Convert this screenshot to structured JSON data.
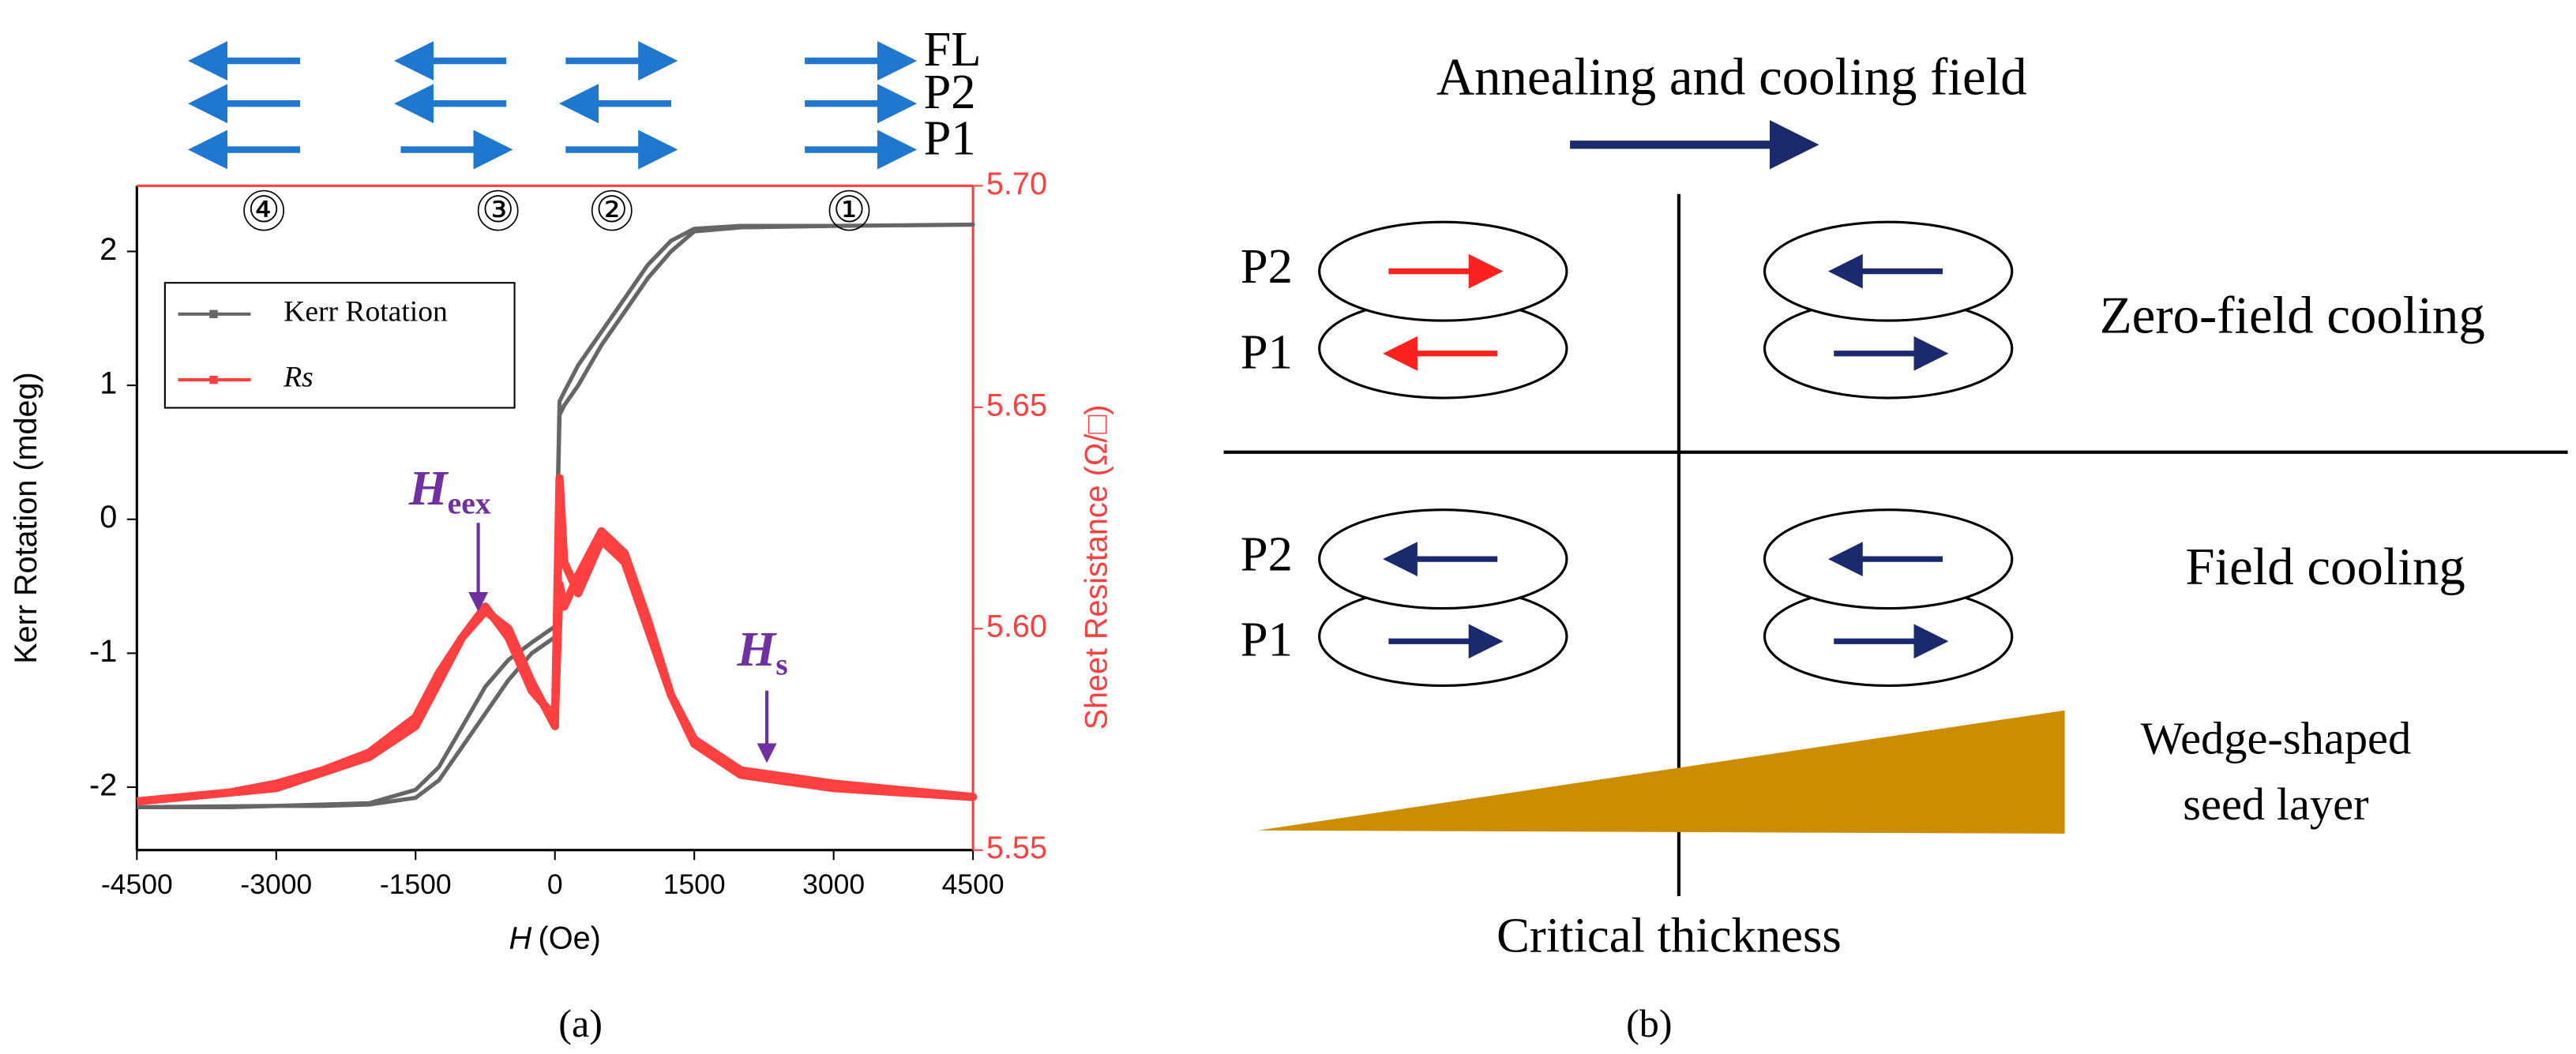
{
  "chart_data": {
    "type": "line",
    "panel_label": "(a)",
    "x_label": "H",
    "x_label_unit": "(Oe)",
    "y_label": "Kerr Rotation (mdeg)",
    "y2_label": "Sheet Resistance (Ω/□)",
    "x": [
      -4500,
      -4000,
      -3500,
      -3000,
      -2500,
      -2000,
      -1500,
      -1250,
      -1000,
      -750,
      -500,
      -250,
      0,
      50,
      100,
      250,
      500,
      750,
      1000,
      1250,
      1500,
      2000,
      3000,
      4500,
      3000,
      2000,
      1500,
      1250,
      1000,
      750,
      500,
      250,
      100,
      50,
      0,
      -250,
      -500,
      -750,
      -1000,
      -1250,
      -1500,
      -2000,
      -3000,
      -4500
    ],
    "series": [
      {
        "name": "Kerr Rotation",
        "color": "#666666",
        "values": [
          -2.15,
          -2.15,
          -2.15,
          -2.14,
          -2.14,
          -2.13,
          -2.08,
          -1.95,
          -1.7,
          -1.45,
          -1.2,
          -1.0,
          -0.88,
          0.78,
          0.85,
          1.0,
          1.3,
          1.55,
          1.8,
          2.0,
          2.15,
          2.18,
          2.19,
          2.2,
          2.19,
          2.19,
          2.17,
          2.08,
          1.9,
          1.65,
          1.4,
          1.15,
          0.95,
          0.88,
          -0.8,
          -0.92,
          -1.05,
          -1.25,
          -1.55,
          -1.85,
          -2.02,
          -2.12,
          -2.14,
          -2.15
        ]
      },
      {
        "name": "Rs",
        "color": "#ff4040",
        "axis": "y2",
        "values": [
          5.561,
          5.562,
          5.563,
          5.565,
          5.568,
          5.572,
          5.58,
          5.59,
          5.598,
          5.604,
          5.6,
          5.588,
          5.578,
          5.634,
          5.615,
          5.608,
          5.62,
          5.615,
          5.6,
          5.585,
          5.575,
          5.568,
          5.565,
          5.562,
          5.564,
          5.567,
          5.574,
          5.585,
          5.602,
          5.617,
          5.622,
          5.612,
          5.605,
          5.61,
          5.58,
          5.586,
          5.598,
          5.605,
          5.598,
          5.588,
          5.578,
          5.571,
          5.564,
          5.561
        ]
      }
    ],
    "xlim": [
      -4500,
      4500
    ],
    "xticks": [
      -4500,
      -3000,
      -1500,
      0,
      1500,
      3000,
      4500
    ],
    "ylim": [
      -2.47,
      2.49
    ],
    "yticks": [
      -2,
      -1,
      0,
      1,
      2
    ],
    "y2lim": [
      5.55,
      5.7
    ],
    "y2ticks": [
      5.55,
      {
        "value": 5.6,
        "label": "5.60"
      },
      5.65,
      {
        "value": 5.7,
        "label": "5.70"
      }
    ],
    "annotations": [
      {
        "text": "H",
        "sub": "eex"
      },
      {
        "text": "H",
        "sub": "s"
      }
    ],
    "states": [
      "④",
      "③",
      "②",
      "①"
    ],
    "layers": [
      "FL",
      "P2",
      "P1"
    ]
  },
  "panel_b": {
    "title": "Annealing and cooling field",
    "panel_label": "(b)",
    "rows": [
      {
        "label": "Zero-field cooling",
        "layers": [
          "P2",
          "P1"
        ]
      },
      {
        "label": "Field cooling",
        "layers": [
          "P2",
          "P1"
        ]
      }
    ],
    "wedge_label": [
      "Wedge-shaped",
      "seed layer"
    ],
    "axis_label": "Critical thickness"
  }
}
